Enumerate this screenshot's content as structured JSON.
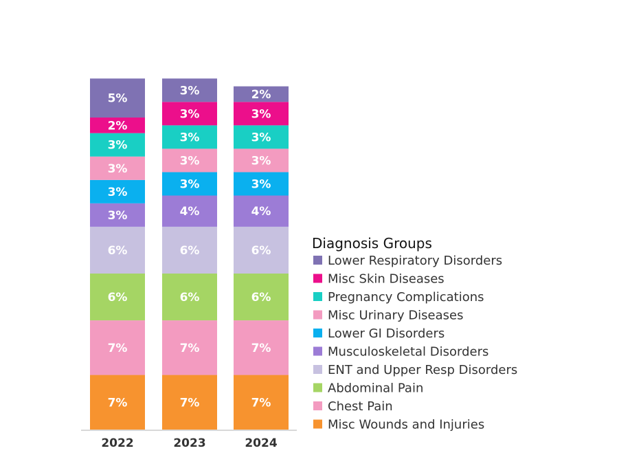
{
  "chart_data": {
    "type": "bar",
    "stacked": true,
    "categories": [
      "2022",
      "2023",
      "2024"
    ],
    "legend_title": "Diagnosis Groups",
    "legend_position": "right",
    "grid": false,
    "series": [
      {
        "name": "Misc Wounds and Injuries",
        "color": "#f7932f",
        "values": [
          7,
          7,
          7
        ]
      },
      {
        "name": "Chest Pain",
        "color": "#f39bc0",
        "values": [
          7,
          7,
          7
        ]
      },
      {
        "name": "Abdominal Pain",
        "color": "#a5d564",
        "values": [
          6,
          6,
          6
        ]
      },
      {
        "name": "ENT and Upper Resp Disorders",
        "color": "#c7c1e0",
        "values": [
          6,
          6,
          6
        ]
      },
      {
        "name": "Musculoskeletal Disorders",
        "color": "#9c7cd6",
        "values": [
          3,
          4,
          4
        ]
      },
      {
        "name": "Lower GI Disorders",
        "color": "#0ab0ef",
        "values": [
          3,
          3,
          3
        ]
      },
      {
        "name": "Misc Urinary Diseases",
        "color": "#f39bc0",
        "values": [
          3,
          3,
          3
        ]
      },
      {
        "name": "Pregnancy Complications",
        "color": "#19cfc4",
        "values": [
          3,
          3,
          3
        ]
      },
      {
        "name": "Misc Skin Diseases",
        "color": "#ec0f8b",
        "values": [
          2,
          3,
          3
        ]
      },
      {
        "name": "Lower Respiratory Disorders",
        "color": "#7f72b3",
        "values": [
          5,
          3,
          2
        ]
      }
    ],
    "legend_order": [
      "Lower Respiratory Disorders",
      "Misc Skin Diseases",
      "Pregnancy Complications",
      "Misc Urinary Diseases",
      "Lower GI Disorders",
      "Musculoskeletal Disorders",
      "ENT and Upper Resp Disorders",
      "Abdominal Pain",
      "Chest Pain",
      "Misc Wounds and Injuries"
    ]
  }
}
